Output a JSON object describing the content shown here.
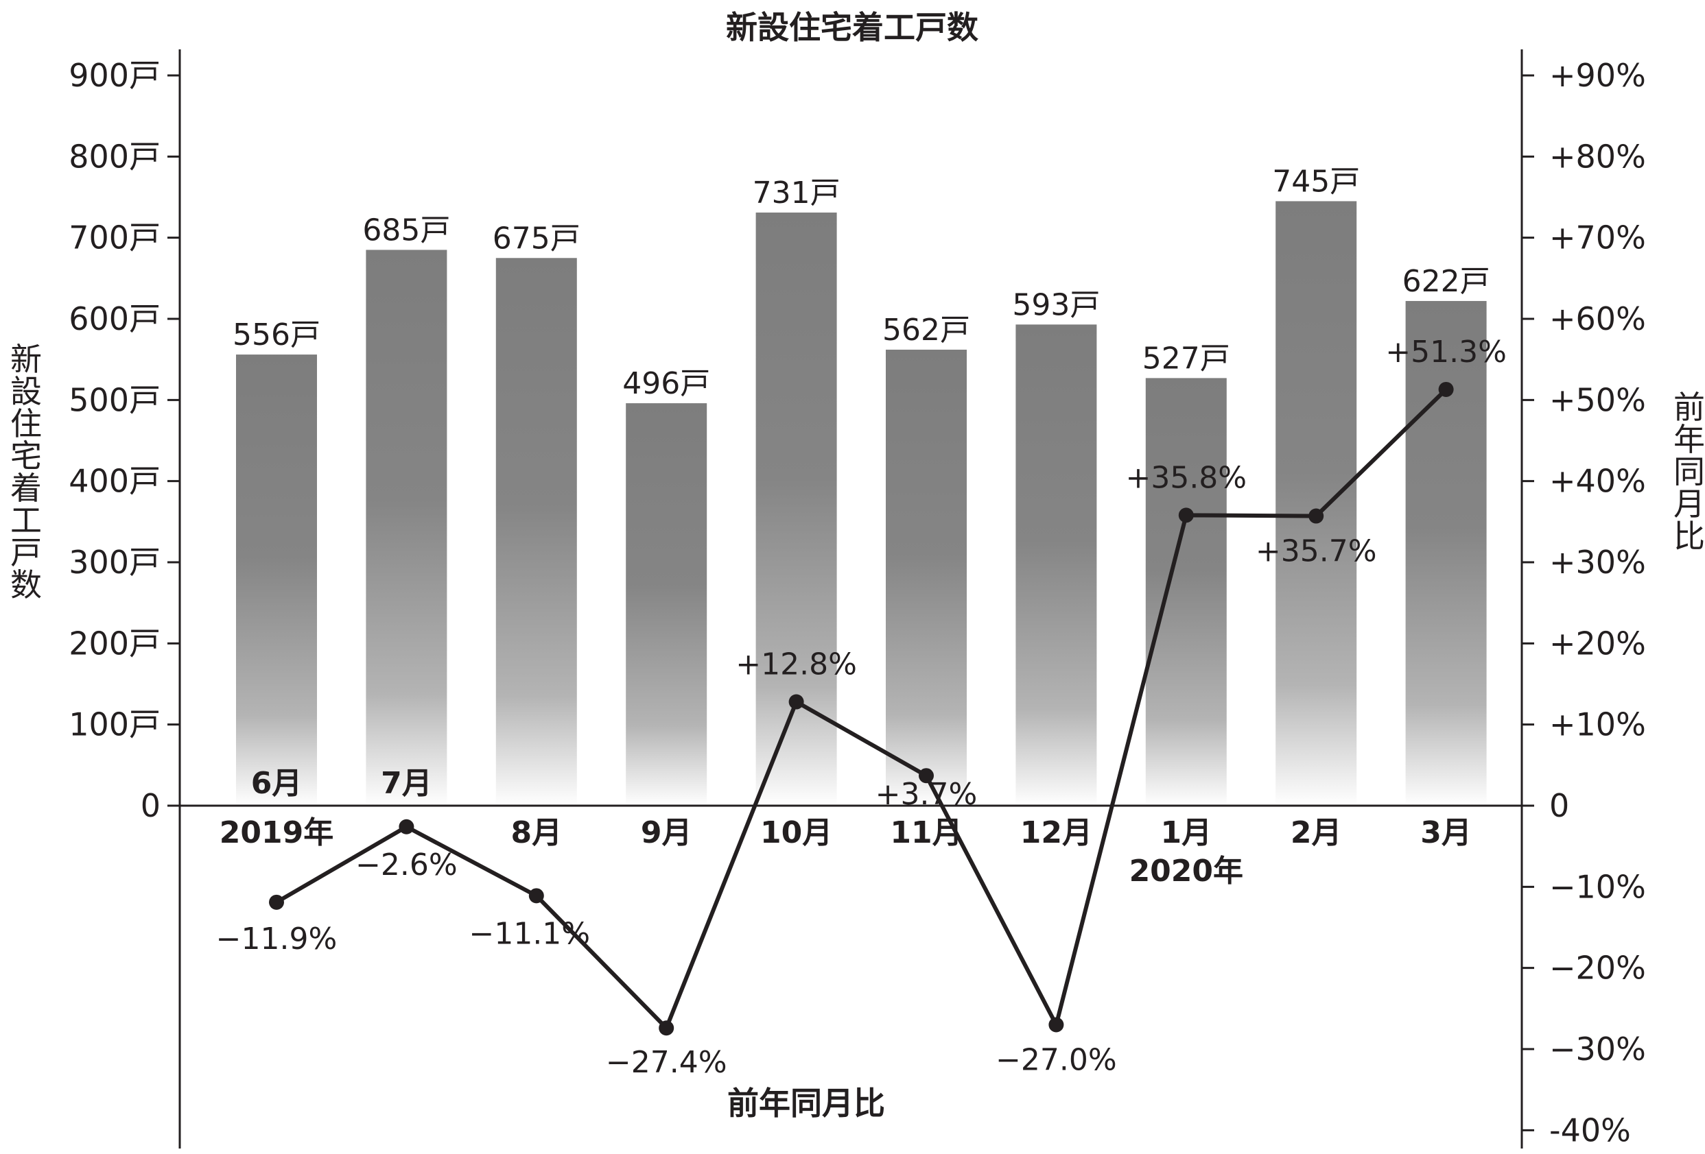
{
  "chart_data": {
    "type": "bar",
    "title": "新設住宅着工戸数",
    "categories": [
      "6月",
      "7月",
      "8月",
      "9月",
      "10月",
      "11月",
      "12月",
      "1月",
      "2月",
      "3月"
    ],
    "year_labels": [
      {
        "category_index": 0,
        "text": "2019年"
      },
      {
        "category_index": 7,
        "text": "2020年"
      }
    ],
    "units_label": "戸",
    "left_axis": {
      "label": "新設住宅着工戸数",
      "ylim": [
        0,
        900
      ],
      "ticks": [
        0,
        100,
        200,
        300,
        400,
        500,
        600,
        700,
        800,
        900
      ],
      "tick_labels": [
        "0",
        "100戸",
        "200戸",
        "300戸",
        "400戸",
        "500戸",
        "600戸",
        "700戸",
        "800戸",
        "900戸"
      ]
    },
    "right_axis": {
      "label": "前年同月比",
      "ylim": [
        -40,
        90
      ],
      "ticks": [
        90,
        80,
        70,
        60,
        50,
        40,
        30,
        20,
        10,
        0,
        -10,
        -20,
        -30,
        -40
      ],
      "tick_labels": [
        "+90%",
        "+80%",
        "+70%",
        "+60%",
        "+50%",
        "+40%",
        "+30%",
        "+20%",
        "+10%",
        "0",
        "−10%",
        "−20%",
        "−30%",
        "-40%"
      ]
    },
    "x_axis_label": "前年同月比",
    "series": [
      {
        "type": "bar",
        "axis": "left",
        "values": [
          556,
          685,
          675,
          496,
          731,
          562,
          593,
          527,
          745,
          622
        ],
        "data_labels": [
          "556戸",
          "685戸",
          "675戸",
          "496戸",
          "731戸",
          "562戸",
          "593戸",
          "527戸",
          "745戸",
          "622戸"
        ],
        "color": "#7f7f7f"
      },
      {
        "type": "line",
        "axis": "right",
        "values": [
          -11.9,
          -2.6,
          -11.1,
          -27.4,
          12.8,
          3.7,
          -27.0,
          35.8,
          35.7,
          51.3
        ],
        "data_labels": [
          "−11.9%",
          "−2.6%",
          "−11.1%",
          "−27.4%",
          "+12.8%",
          "+3.7%",
          "−27.0%",
          "+35.8%",
          "+35.7%",
          "+51.3%"
        ],
        "color": "#231f20"
      }
    ],
    "grid": false
  }
}
